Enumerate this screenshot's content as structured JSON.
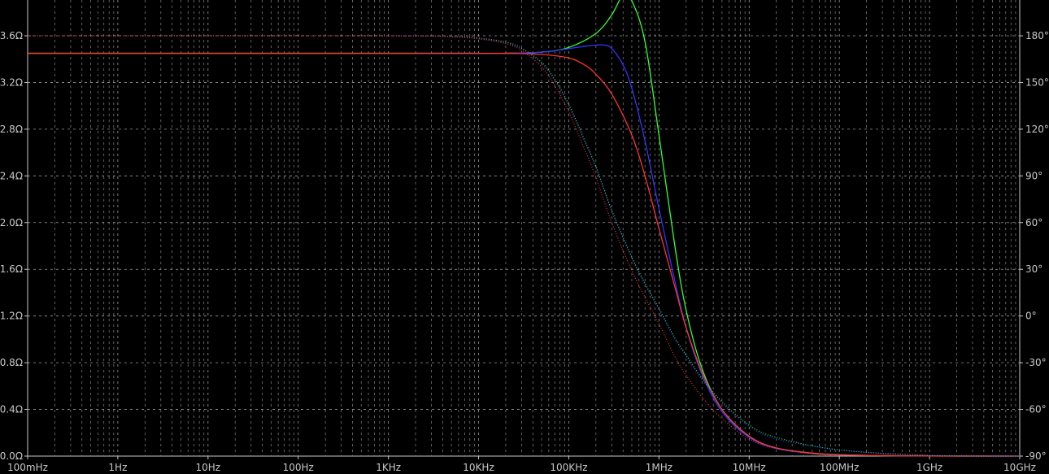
{
  "chart_data": {
    "type": "line",
    "title": "",
    "xlabel": "",
    "ylabel": "",
    "x_scale": "log",
    "xlim_hz": [
      0.1,
      10000000000
    ],
    "ylim_left_ohm": [
      0,
      3.6
    ],
    "ylim_right_deg": [
      -90,
      180
    ],
    "grid": true,
    "x_tick_labels": [
      "100mHz",
      "1Hz",
      "10Hz",
      "100Hz",
      "1KHz",
      "10KHz",
      "100KHz",
      "1MHz",
      "10MHz",
      "100MHz",
      "1GHz",
      "10GHz"
    ],
    "y_left_tick_labels": [
      "0.0Ω",
      "0.4Ω",
      "0.8Ω",
      "1.2Ω",
      "1.6Ω",
      "2.0Ω",
      "2.4Ω",
      "2.8Ω",
      "3.2Ω",
      "3.6Ω"
    ],
    "y_right_tick_labels": [
      "-90°",
      "-60°",
      "-30°",
      "0°",
      "30°",
      "60°",
      "90°",
      "120°",
      "150°",
      "180°"
    ],
    "series": [
      {
        "color": "#33ff33",
        "style": "solid",
        "axis": "left",
        "x_hz": [
          0.1,
          2000,
          8000,
          20000,
          50000,
          100000,
          200000,
          300000,
          400000,
          500000,
          700000,
          1000000,
          1500000,
          2000000,
          3000000,
          5000000,
          10000000,
          20000000,
          50000000,
          100000000,
          300000000,
          1000000000,
          10000000000
        ],
        "y": [
          3.45,
          3.45,
          3.45,
          3.45,
          3.46,
          3.5,
          3.62,
          3.78,
          3.95,
          3.9,
          3.55,
          2.75,
          1.8,
          1.25,
          0.75,
          0.4,
          0.17,
          0.07,
          0.025,
          0.012,
          0.005,
          0.001,
          0.0
        ]
      },
      {
        "color": "#3333ff",
        "style": "solid",
        "axis": "left",
        "x_hz": [
          2000,
          8000,
          20000,
          50000,
          100000,
          150000,
          200000,
          250000,
          300000,
          400000,
          500000,
          700000,
          1000000,
          1500000,
          2000000,
          3000000,
          5000000,
          10000000,
          20000000,
          50000000,
          100000000,
          300000000,
          1000000000,
          10000000000
        ],
        "y": [
          3.45,
          3.45,
          3.45,
          3.46,
          3.49,
          3.51,
          3.52,
          3.52,
          3.49,
          3.35,
          3.15,
          2.7,
          2.12,
          1.5,
          1.1,
          0.7,
          0.38,
          0.16,
          0.065,
          0.022,
          0.01,
          0.004,
          0.001,
          0.0
        ]
      },
      {
        "color": "#ff3333",
        "style": "solid",
        "axis": "left",
        "x_hz": [
          0.1,
          8000,
          20000,
          50000,
          100000,
          150000,
          200000,
          300000,
          500000,
          700000,
          1000000,
          1500000,
          2000000,
          3000000,
          5000000,
          10000000,
          20000000,
          50000000,
          100000000,
          300000000,
          1000000000,
          10000000000
        ],
        "y": [
          3.45,
          3.45,
          3.45,
          3.44,
          3.41,
          3.35,
          3.27,
          3.1,
          2.75,
          2.4,
          1.95,
          1.45,
          1.1,
          0.72,
          0.4,
          0.17,
          0.07,
          0.024,
          0.011,
          0.004,
          0.001,
          0.0
        ]
      },
      {
        "color": "#33ff33",
        "style": "dotted",
        "axis": "right",
        "x_hz": [
          0.1,
          1000,
          5000,
          10000,
          20000,
          30000,
          50000,
          70000,
          100000,
          150000,
          200000,
          300000,
          500000,
          700000,
          1000000,
          1500000,
          2000000,
          3000000,
          5000000,
          10000000,
          20000000,
          100000000,
          1000000000,
          10000000000
        ],
        "y": [
          180,
          180,
          179.5,
          178.5,
          176,
          172,
          163,
          152,
          136,
          113,
          96,
          68,
          38,
          21,
          5,
          -14,
          -25,
          -40,
          -55,
          -70,
          -78,
          -86,
          -89.5,
          -90
        ]
      },
      {
        "color": "#3333ff",
        "style": "dotted",
        "axis": "right",
        "x_hz": [
          1000,
          5000,
          10000,
          20000,
          30000,
          50000,
          70000,
          100000,
          150000,
          200000,
          300000,
          500000,
          700000,
          1000000,
          1500000,
          2000000,
          3000000,
          5000000,
          10000000,
          20000000,
          100000000,
          1000000000,
          10000000000
        ],
        "y": [
          180,
          179.5,
          178.3,
          175.5,
          171.5,
          162,
          151,
          135,
          112,
          95,
          67,
          37,
          20,
          4,
          -15,
          -26,
          -41,
          -56,
          -71,
          -79,
          -86,
          -89.5,
          -90
        ]
      },
      {
        "color": "#ff3333",
        "style": "dotted",
        "axis": "right",
        "x_hz": [
          0.1,
          1000,
          5000,
          10000,
          20000,
          30000,
          50000,
          70000,
          100000,
          150000,
          200000,
          300000,
          500000,
          700000,
          1000000,
          1500000,
          2000000,
          3000000,
          5000000,
          10000000,
          20000000,
          100000000,
          1000000000,
          10000000000
        ],
        "y": [
          180,
          180,
          179.4,
          178,
          175,
          170.5,
          160,
          148,
          131,
          107,
          89,
          60,
          29,
          12,
          -5,
          -26,
          -38,
          -52,
          -66,
          -79,
          -85,
          -89,
          -90,
          -90
        ]
      }
    ]
  }
}
